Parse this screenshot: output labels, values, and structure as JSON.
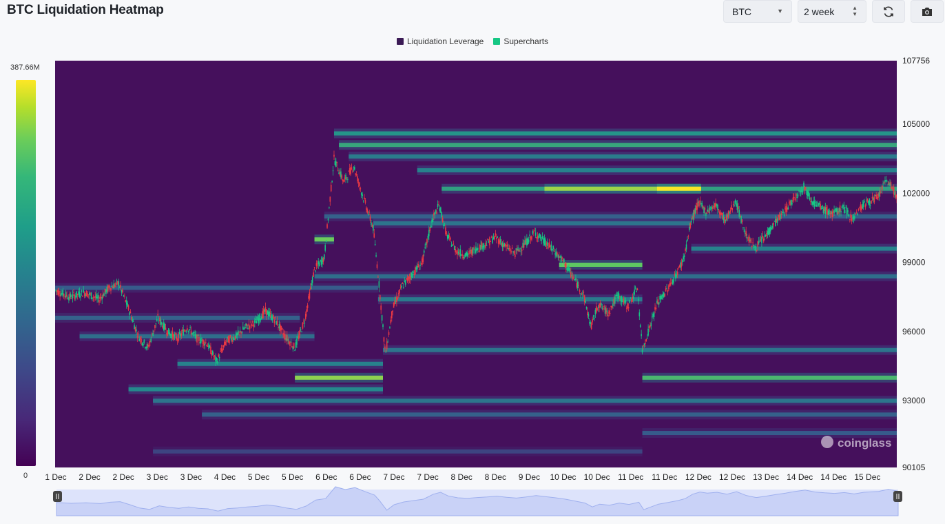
{
  "header": {
    "title": "BTC Liquidation Heatmap",
    "coin_select": "BTC",
    "range_select": "2 week"
  },
  "legend": [
    {
      "label": "Liquidation Leverage",
      "color": "#3b1a55"
    },
    {
      "label": "Supercharts",
      "color": "#16c784"
    }
  ],
  "colorbar": {
    "max_label": "387.66M",
    "min_label": "0"
  },
  "watermark": "coinglass",
  "chart_data": {
    "type": "heatmap",
    "title": "BTC Liquidation Heatmap",
    "x_tick_labels": [
      "1 Dec",
      "2 Dec",
      "2 Dec",
      "3 Dec",
      "3 Dec",
      "4 Dec",
      "5 Dec",
      "5 Dec",
      "6 Dec",
      "6 Dec",
      "7 Dec",
      "7 Dec",
      "8 Dec",
      "8 Dec",
      "9 Dec",
      "10 Dec",
      "10 Dec",
      "11 Dec",
      "11 Dec",
      "12 Dec",
      "12 Dec",
      "13 Dec",
      "14 Dec",
      "14 Dec",
      "15 Dec"
    ],
    "y_tick_labels": [
      "107756",
      "105000",
      "102000",
      "99000",
      "96000",
      "93000",
      "90105"
    ],
    "ylim": [
      90105,
      107756
    ],
    "xlim": [
      0,
      15
    ],
    "colorscale": "viridis",
    "color_range": [
      0,
      387.66
    ],
    "price_series": [
      {
        "t": 0.0,
        "p": 97800
      },
      {
        "t": 0.3,
        "p": 97500
      },
      {
        "t": 0.6,
        "p": 97700
      },
      {
        "t": 0.9,
        "p": 97400
      },
      {
        "t": 1.1,
        "p": 97900
      },
      {
        "t": 1.3,
        "p": 98100
      },
      {
        "t": 1.5,
        "p": 97000
      },
      {
        "t": 1.7,
        "p": 95800
      },
      {
        "t": 1.9,
        "p": 95300
      },
      {
        "t": 2.1,
        "p": 96600
      },
      {
        "t": 2.3,
        "p": 96000
      },
      {
        "t": 2.5,
        "p": 95700
      },
      {
        "t": 2.7,
        "p": 96200
      },
      {
        "t": 2.9,
        "p": 95700
      },
      {
        "t": 3.1,
        "p": 95500
      },
      {
        "t": 3.3,
        "p": 94700
      },
      {
        "t": 3.5,
        "p": 95600
      },
      {
        "t": 3.7,
        "p": 95800
      },
      {
        "t": 3.9,
        "p": 96200
      },
      {
        "t": 4.1,
        "p": 96400
      },
      {
        "t": 4.3,
        "p": 96900
      },
      {
        "t": 4.5,
        "p": 96500
      },
      {
        "t": 4.7,
        "p": 95800
      },
      {
        "t": 4.9,
        "p": 95300
      },
      {
        "t": 5.1,
        "p": 96500
      },
      {
        "t": 5.3,
        "p": 98700
      },
      {
        "t": 5.5,
        "p": 99200
      },
      {
        "t": 5.7,
        "p": 103500
      },
      {
        "t": 5.9,
        "p": 102500
      },
      {
        "t": 6.1,
        "p": 103200
      },
      {
        "t": 6.3,
        "p": 101800
      },
      {
        "t": 6.5,
        "p": 100500
      },
      {
        "t": 6.6,
        "p": 98500
      },
      {
        "t": 6.75,
        "p": 95000
      },
      {
        "t": 6.9,
        "p": 97000
      },
      {
        "t": 7.1,
        "p": 98000
      },
      {
        "t": 7.3,
        "p": 98500
      },
      {
        "t": 7.5,
        "p": 99000
      },
      {
        "t": 7.7,
        "p": 100800
      },
      {
        "t": 7.85,
        "p": 101500
      },
      {
        "t": 8.0,
        "p": 100200
      },
      {
        "t": 8.2,
        "p": 99500
      },
      {
        "t": 8.4,
        "p": 99300
      },
      {
        "t": 8.6,
        "p": 99600
      },
      {
        "t": 8.8,
        "p": 99800
      },
      {
        "t": 9.0,
        "p": 100100
      },
      {
        "t": 9.2,
        "p": 99700
      },
      {
        "t": 9.4,
        "p": 99400
      },
      {
        "t": 9.6,
        "p": 99800
      },
      {
        "t": 9.8,
        "p": 100300
      },
      {
        "t": 10.0,
        "p": 99900
      },
      {
        "t": 10.2,
        "p": 99500
      },
      {
        "t": 10.4,
        "p": 99000
      },
      {
        "t": 10.6,
        "p": 98300
      },
      {
        "t": 10.8,
        "p": 97600
      },
      {
        "t": 10.95,
        "p": 96200
      },
      {
        "t": 11.1,
        "p": 97200
      },
      {
        "t": 11.3,
        "p": 96800
      },
      {
        "t": 11.5,
        "p": 97600
      },
      {
        "t": 11.7,
        "p": 97100
      },
      {
        "t": 11.9,
        "p": 97900
      },
      {
        "t": 12.0,
        "p": 95200
      },
      {
        "t": 12.15,
        "p": 96200
      },
      {
        "t": 12.3,
        "p": 97200
      },
      {
        "t": 12.5,
        "p": 97800
      },
      {
        "t": 12.7,
        "p": 98500
      },
      {
        "t": 12.85,
        "p": 99200
      },
      {
        "t": 13.0,
        "p": 100800
      },
      {
        "t": 13.15,
        "p": 101600
      },
      {
        "t": 13.3,
        "p": 101200
      },
      {
        "t": 13.5,
        "p": 101500
      },
      {
        "t": 13.7,
        "p": 100800
      },
      {
        "t": 13.9,
        "p": 101700
      },
      {
        "t": 14.1,
        "p": 100300
      },
      {
        "t": 14.3,
        "p": 99600
      },
      {
        "t": 14.5,
        "p": 100100
      },
      {
        "t": 14.7,
        "p": 100700
      },
      {
        "t": 14.9,
        "p": 101200
      },
      {
        "t": 15.1,
        "p": 101800
      },
      {
        "t": 15.3,
        "p": 102300
      },
      {
        "t": 15.5,
        "p": 101600
      },
      {
        "t": 15.7,
        "p": 101300
      },
      {
        "t": 15.9,
        "p": 101100
      },
      {
        "t": 16.1,
        "p": 101400
      },
      {
        "t": 16.3,
        "p": 100900
      },
      {
        "t": 16.5,
        "p": 101500
      },
      {
        "t": 16.8,
        "p": 101800
      },
      {
        "t": 17.0,
        "p": 102600
      },
      {
        "t": 17.2,
        "p": 101900
      }
    ],
    "liquidation_bands": [
      {
        "y": 104600,
        "t0": 5.7,
        "t1": 17.2,
        "v": 200
      },
      {
        "y": 104100,
        "t0": 5.8,
        "t1": 17.2,
        "v": 230
      },
      {
        "y": 103600,
        "t0": 6.0,
        "t1": 17.2,
        "v": 160
      },
      {
        "y": 103000,
        "t0": 7.4,
        "t1": 17.2,
        "v": 170
      },
      {
        "y": 102200,
        "t0": 7.9,
        "t1": 17.2,
        "v": 220
      },
      {
        "y": 102200,
        "t0": 10.0,
        "t1": 13.2,
        "v": 330
      },
      {
        "y": 102200,
        "t0": 12.3,
        "t1": 13.2,
        "v": 385
      },
      {
        "y": 101000,
        "t0": 5.5,
        "t1": 17.2,
        "v": 120
      },
      {
        "y": 100700,
        "t0": 6.5,
        "t1": 13.0,
        "v": 150
      },
      {
        "y": 100000,
        "t0": 5.3,
        "t1": 5.7,
        "v": 300
      },
      {
        "y": 99600,
        "t0": 13.0,
        "t1": 17.2,
        "v": 170
      },
      {
        "y": 98900,
        "t0": 10.3,
        "t1": 12.0,
        "v": 290
      },
      {
        "y": 98400,
        "t0": 5.3,
        "t1": 17.2,
        "v": 140
      },
      {
        "y": 97900,
        "t0": 0.0,
        "t1": 6.6,
        "v": 110
      },
      {
        "y": 97400,
        "t0": 6.6,
        "t1": 12.0,
        "v": 160
      },
      {
        "y": 96600,
        "t0": 0.0,
        "t1": 5.0,
        "v": 120
      },
      {
        "y": 95800,
        "t0": 0.5,
        "t1": 5.3,
        "v": 140
      },
      {
        "y": 95200,
        "t0": 6.7,
        "t1": 17.2,
        "v": 150
      },
      {
        "y": 94600,
        "t0": 2.5,
        "t1": 6.7,
        "v": 170
      },
      {
        "y": 94000,
        "t0": 4.9,
        "t1": 6.7,
        "v": 320
      },
      {
        "y": 94000,
        "t0": 12.0,
        "t1": 17.2,
        "v": 260
      },
      {
        "y": 93500,
        "t0": 1.5,
        "t1": 6.7,
        "v": 180
      },
      {
        "y": 93000,
        "t0": 2.0,
        "t1": 17.2,
        "v": 150
      },
      {
        "y": 92400,
        "t0": 3.0,
        "t1": 17.2,
        "v": 120
      },
      {
        "y": 91600,
        "t0": 12.0,
        "t1": 17.2,
        "v": 110
      },
      {
        "y": 90800,
        "t0": 2.0,
        "t1": 12.0,
        "v": 80
      }
    ]
  }
}
